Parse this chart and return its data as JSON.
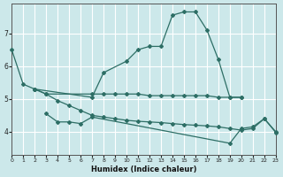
{
  "xlabel": "Humidex (Indice chaleur)",
  "bg_color": "#cce8ea",
  "grid_color": "#ffffff",
  "line_color": "#2d6e65",
  "xlim": [
    0,
    23
  ],
  "ylim": [
    3.3,
    7.9
  ],
  "yticks": [
    4,
    5,
    6,
    7
  ],
  "xticks": [
    0,
    1,
    2,
    3,
    4,
    5,
    6,
    7,
    8,
    9,
    10,
    11,
    12,
    13,
    14,
    15,
    16,
    17,
    18,
    19,
    20,
    21,
    22,
    23
  ],
  "lines": [
    {
      "x": [
        0,
        1,
        2,
        7,
        8,
        10,
        11,
        12,
        13,
        14,
        15,
        16,
        17,
        18,
        19,
        20
      ],
      "y": [
        6.5,
        5.45,
        5.3,
        5.05,
        5.8,
        6.15,
        6.5,
        6.6,
        6.6,
        7.55,
        7.65,
        7.65,
        7.1,
        6.2,
        5.05,
        5.05
      ]
    },
    {
      "x": [
        2,
        3,
        7,
        8,
        9,
        10,
        11,
        12,
        13,
        14,
        15,
        16,
        17,
        18,
        19,
        20
      ],
      "y": [
        5.3,
        5.15,
        5.15,
        5.15,
        5.15,
        5.15,
        5.15,
        5.1,
        5.1,
        5.1,
        5.1,
        5.1,
        5.1,
        5.05,
        5.05,
        5.05
      ]
    },
    {
      "x": [
        2,
        3,
        4,
        5,
        6,
        7,
        8,
        9,
        10,
        11,
        12,
        13,
        14,
        15,
        16,
        17,
        18,
        19,
        20,
        21,
        22,
        23
      ],
      "y": [
        5.3,
        5.15,
        4.95,
        4.8,
        4.65,
        4.5,
        4.45,
        4.4,
        4.35,
        4.32,
        4.3,
        4.28,
        4.25,
        4.22,
        4.2,
        4.18,
        4.15,
        4.1,
        4.05,
        4.1,
        4.4,
        4.0
      ]
    },
    {
      "x": [
        3,
        4,
        5,
        6,
        7,
        19,
        20,
        21,
        22,
        23
      ],
      "y": [
        4.55,
        4.3,
        4.3,
        4.25,
        4.45,
        3.65,
        4.1,
        4.15,
        4.4,
        3.98
      ]
    }
  ]
}
